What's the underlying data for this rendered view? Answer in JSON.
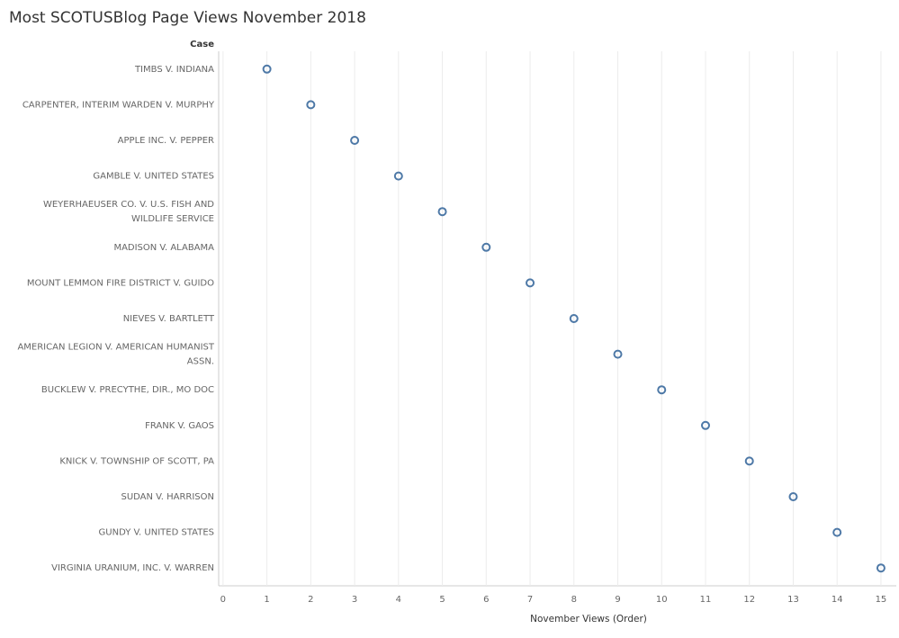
{
  "chart_data": {
    "type": "dot",
    "title": "Most SCOTUSBlog Page Views November 2018",
    "category_label": "Case",
    "x_label": "November Views (Order)",
    "categories": [
      "TIMBS V. INDIANA",
      "CARPENTER, INTERIM WARDEN V. MURPHY",
      "APPLE INC. V. PEPPER",
      "GAMBLE V. UNITED STATES",
      "WEYERHAEUSER CO. V. U.S. FISH AND WILDLIFE SERVICE",
      "MADISON V. ALABAMA",
      "MOUNT LEMMON FIRE DISTRICT V. GUIDO",
      "NIEVES V. BARTLETT",
      "AMERICAN LEGION V. AMERICAN HUMANIST ASSN.",
      "BUCKLEW V. PRECYTHE, DIR., MO DOC",
      "FRANK V. GAOS",
      "KNICK V. TOWNSHIP OF SCOTT, PA",
      "SUDAN V. HARRISON",
      "GUNDY V. UNITED STATES",
      "VIRGINIA URANIUM, INC. V. WARREN"
    ],
    "values": [
      1,
      2,
      3,
      4,
      5,
      6,
      7,
      8,
      9,
      10,
      11,
      12,
      13,
      14,
      15
    ],
    "color": "#4e79a7",
    "xlim": [
      -0.1,
      15.35
    ],
    "xticks": [
      0,
      1,
      2,
      3,
      4,
      5,
      6,
      7,
      8,
      9,
      10,
      11,
      12,
      13,
      14,
      15
    ],
    "grid": true
  }
}
